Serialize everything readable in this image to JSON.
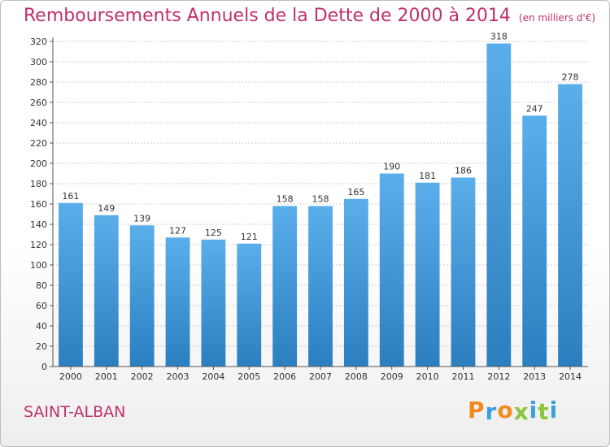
{
  "header": {
    "title": "Remboursements Annuels de la Dette de 2000 à 2014",
    "subtitle": "(en milliers d'€)"
  },
  "footer": {
    "location": "SAINT-ALBAN",
    "brand": "Proxiti"
  },
  "colors": {
    "title": "#c0306a",
    "bar_top": "#5aaeea",
    "bar_bottom": "#2b7fc0",
    "grid": "#cccccc",
    "brand_letters": [
      "#f08a1e",
      "#3aa0dc",
      "#f08a1e",
      "#8cc63f",
      "#3aa0dc",
      "#8cc63f",
      "#3aa0dc"
    ]
  },
  "chart_data": {
    "type": "bar",
    "title": "Remboursements Annuels de la Dette de 2000 à 2014",
    "subtitle": "(en milliers d'€)",
    "categories": [
      "2000",
      "2001",
      "2002",
      "2003",
      "2004",
      "2005",
      "2006",
      "2007",
      "2008",
      "2009",
      "2010",
      "2011",
      "2012",
      "2013",
      "2014"
    ],
    "values": [
      161,
      149,
      139,
      127,
      125,
      121,
      158,
      158,
      165,
      190,
      181,
      186,
      318,
      247,
      278
    ],
    "ylim": [
      0,
      320
    ],
    "yticks": [
      0,
      20,
      40,
      60,
      80,
      100,
      120,
      140,
      160,
      180,
      200,
      220,
      240,
      260,
      280,
      300,
      320
    ],
    "xlabel": "",
    "ylabel": "",
    "grid": true,
    "legend": "none"
  }
}
